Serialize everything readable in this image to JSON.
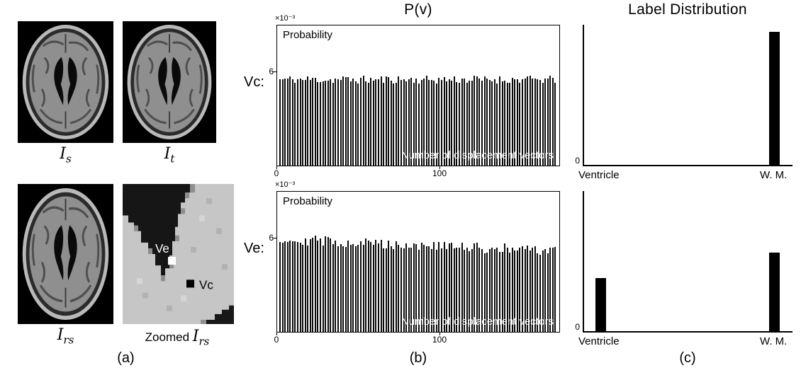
{
  "figure": {
    "background": "#ffffff",
    "panel_a": {
      "label": "(a)",
      "captions": {
        "source": {
          "base": "I",
          "sub": "s"
        },
        "target": {
          "base": "I",
          "sub": "t"
        },
        "registered": {
          "base": "I",
          "sub": "rs"
        },
        "zoomed": {
          "prefix": "Zoomed ",
          "base": "I",
          "sub": "rs"
        }
      },
      "zoom_markers": {
        "ve": "Ve",
        "vc": "Vc"
      }
    },
    "panel_b": {
      "label": "(b)",
      "title": "P(v)",
      "rows": [
        {
          "row_label": "Vc:",
          "scale": "×10⁻³",
          "ylabel": "Probability",
          "ytick": "6",
          "xtick0": "0",
          "xtick1": "100",
          "overlay": "Number of displacement vectors"
        },
        {
          "row_label": "Ve:",
          "scale": "×10⁻³",
          "ylabel": "Probability",
          "ytick": "6",
          "xtick0": "0",
          "xtick1": "100",
          "overlay": "Number of displacement vectors"
        }
      ]
    },
    "panel_c": {
      "label": "(c)",
      "title": "Label Distribution",
      "rows": [
        {
          "ytick": "0",
          "categories": [
            "Ventricle",
            "W. M."
          ]
        },
        {
          "ytick": "0",
          "categories": [
            "Ventricle",
            "W. M."
          ]
        }
      ]
    }
  },
  "chart_data": [
    {
      "id": "vc",
      "render": "histogram",
      "type": "bar",
      "title": "P(v) for voxel Vc",
      "xlabel": "Number of displacement vectors",
      "ylabel": "Probability",
      "y_scale": "×10⁻³",
      "ylim": [
        0,
        0.009
      ],
      "yticks": [
        0.006
      ],
      "x_range": [
        0,
        170
      ],
      "xticks": [
        0,
        100
      ],
      "n_bars": 110,
      "approx_mean": 0.0057,
      "description": "Approximately uniform probability over all displacement vectors, bars just below the 6×10⁻³ gridline",
      "base_frac": 0.62,
      "trend_frac": 0.0,
      "noise_frac": 0.06,
      "seed": 11
    },
    {
      "id": "ve",
      "render": "histogram",
      "type": "bar",
      "title": "P(v) for voxel Ve",
      "xlabel": "Number of displacement vectors",
      "ylabel": "Probability",
      "y_scale": "×10⁻³",
      "ylim": [
        0,
        0.009
      ],
      "yticks": [
        0.006
      ],
      "x_range": [
        0,
        170
      ],
      "xticks": [
        0,
        100
      ],
      "n_bars": 110,
      "approx_mean": 0.0056,
      "description": "Approximately uniform, starting near 6×10⁻³ with a slight decline and more variation",
      "base_frac": 0.67,
      "trend_frac": -0.09,
      "noise_frac": 0.08,
      "seed": 29
    },
    {
      "id": "c1",
      "render": "labeldist",
      "type": "bar",
      "title": "Label distribution at Vc",
      "categories": [
        "Ventricle",
        "W. M."
      ],
      "values": [
        0,
        0.95
      ],
      "yticks": [
        0
      ],
      "bar_left": [
        16,
        261
      ],
      "description": "Single tall bar at W. M. (heights are fractions of the unlabeled axis)"
    },
    {
      "id": "c2",
      "render": "labeldist",
      "type": "bar",
      "title": "Label distribution at Ve",
      "categories": [
        "Ventricle",
        "W. M."
      ],
      "values": [
        0.38,
        0.56
      ],
      "yticks": [
        0
      ],
      "bar_left": [
        16,
        261
      ],
      "description": "Bars at both Ventricle and W. M. (heights are fractions of the unlabeled axis)"
    }
  ]
}
